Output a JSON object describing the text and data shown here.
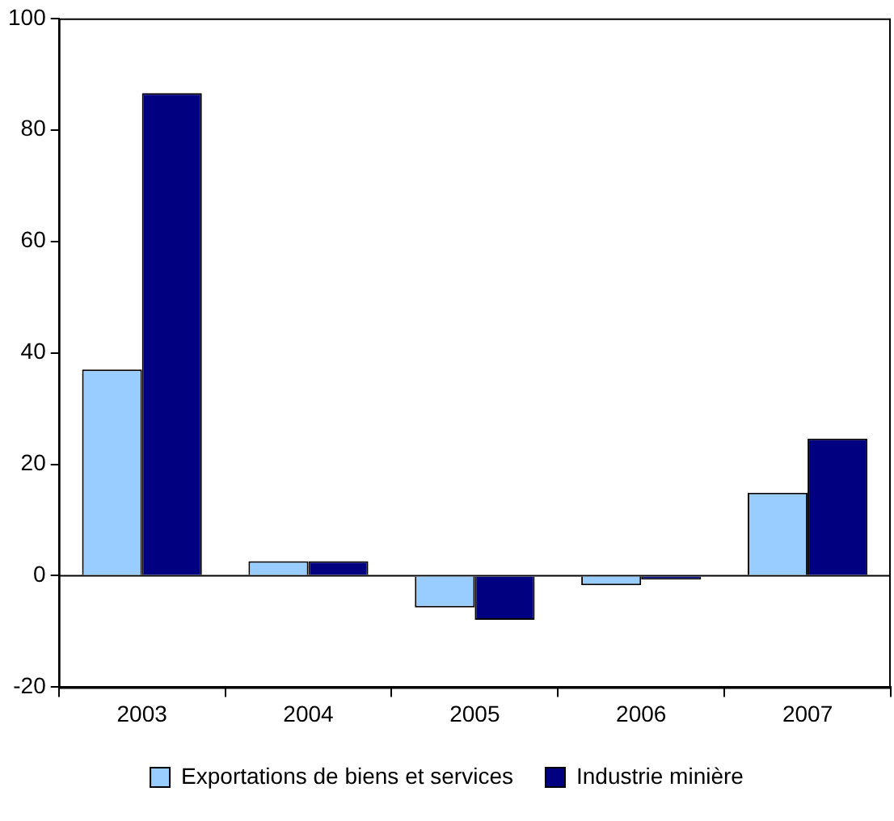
{
  "chart_data": {
    "type": "bar",
    "categories": [
      "2003",
      "2004",
      "2005",
      "2006",
      "2007"
    ],
    "series": [
      {
        "name": "Exportations de biens et services",
        "color": "#99ccff",
        "values": [
          37,
          2.6,
          -5.7,
          -1.7,
          14.9
        ]
      },
      {
        "name": "Industrie minière",
        "color": "#000080",
        "values": [
          86.6,
          2.6,
          -7.9,
          -0.7,
          24.6
        ]
      }
    ],
    "ylim": [
      -20,
      100
    ],
    "yticks": [
      -20,
      0,
      20,
      40,
      60,
      80,
      100
    ],
    "grid": false,
    "ref_lines": [
      {
        "axis": "y",
        "value": 0,
        "color": "#000000"
      }
    ],
    "legend": "bottom"
  }
}
